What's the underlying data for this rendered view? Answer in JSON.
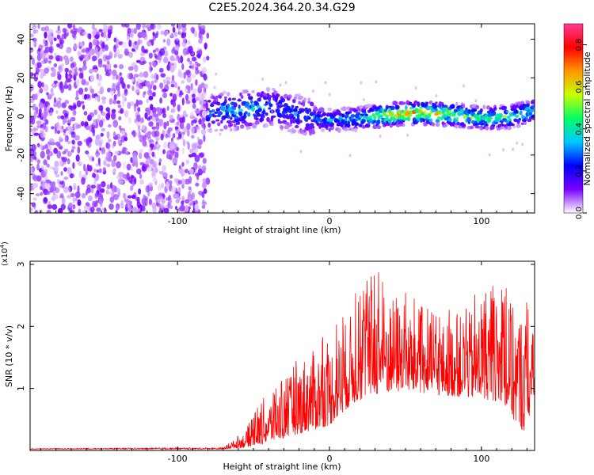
{
  "title": "C2E5.2024.364.20.34.G29",
  "chart_data": [
    {
      "type": "heatmap",
      "xlabel": "Height of straight line (km)",
      "ylabel": "Frequency (Hz)",
      "xlim": [
        -197,
        135
      ],
      "ylim": [
        -50,
        48
      ],
      "xticks": [
        "-100",
        "0",
        "100"
      ],
      "yticks": [
        "-40",
        "-20",
        "0",
        "20",
        "40"
      ],
      "colorbar": {
        "label": "Normalized spectral amplitude",
        "range": [
          0,
          0.9
        ],
        "ticks": [
          "0.0",
          "0.2",
          "0.4",
          "0.6",
          "0.8"
        ],
        "colors": [
          "#ffffff",
          "#7a00ff",
          "#0000ff",
          "#00c8ff",
          "#00ff64",
          "#c8ff00",
          "#ff9600",
          "#ff0000",
          "#ff3c96"
        ]
      },
      "noise_region_x": [
        -197,
        -80
      ],
      "signal_track": [
        {
          "x": -80,
          "y": 2,
          "amp": 0.3
        },
        {
          "x": -60,
          "y": 3,
          "amp": 0.4
        },
        {
          "x": -40,
          "y": 5,
          "amp": 0.35
        },
        {
          "x": -20,
          "y": 1,
          "amp": 0.3
        },
        {
          "x": 0,
          "y": -2,
          "amp": 0.35
        },
        {
          "x": 20,
          "y": -1,
          "amp": 0.4
        },
        {
          "x": 40,
          "y": 1,
          "amp": 0.7
        },
        {
          "x": 60,
          "y": 2,
          "amp": 0.75
        },
        {
          "x": 80,
          "y": 1,
          "amp": 0.65
        },
        {
          "x": 100,
          "y": -1,
          "amp": 0.5
        },
        {
          "x": 120,
          "y": 0,
          "amp": 0.5
        },
        {
          "x": 135,
          "y": 3,
          "amp": 0.45
        }
      ]
    },
    {
      "type": "line",
      "xlabel": "Height of straight line (km)",
      "ylabel": "SNR (10 * v/v)",
      "y_multiplier": "(x10",
      "y_multiplier_exp": "4",
      "xlim": [
        -197,
        135
      ],
      "ylim": [
        0,
        3.05
      ],
      "xticks": [
        "-100",
        "0",
        "100"
      ],
      "yticks": [
        "1",
        "2",
        "3"
      ],
      "color": "#ff0000",
      "envelope": [
        {
          "x": -197,
          "base": 0.02,
          "peak": 0.03
        },
        {
          "x": -70,
          "base": 0.02,
          "peak": 0.05
        },
        {
          "x": -55,
          "base": 0.05,
          "peak": 0.35
        },
        {
          "x": -45,
          "base": 0.1,
          "peak": 0.8
        },
        {
          "x": -30,
          "base": 0.2,
          "peak": 1.2
        },
        {
          "x": -15,
          "base": 0.3,
          "peak": 1.8
        },
        {
          "x": 0,
          "base": 0.4,
          "peak": 1.9
        },
        {
          "x": 15,
          "base": 0.75,
          "peak": 2.5
        },
        {
          "x": 30,
          "base": 0.9,
          "peak": 3.0
        },
        {
          "x": 50,
          "base": 0.95,
          "peak": 2.55
        },
        {
          "x": 70,
          "base": 0.9,
          "peak": 2.2
        },
        {
          "x": 90,
          "base": 0.85,
          "peak": 2.45
        },
        {
          "x": 110,
          "base": 0.8,
          "peak": 2.7
        },
        {
          "x": 128,
          "base": 0.3,
          "peak": 2.6
        },
        {
          "x": 135,
          "base": 0.8,
          "peak": 2.05
        }
      ]
    }
  ]
}
